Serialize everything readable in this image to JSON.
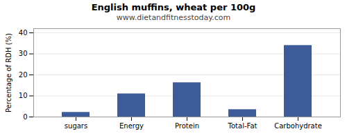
{
  "chart_data": {
    "type": "bar",
    "title": "English muffins, wheat per 100g",
    "subtitle": "www.dietandfitnesstoday.com",
    "categories": [
      "sugars",
      "Energy",
      "Protein",
      "Total-Fat",
      "Carbohydrate"
    ],
    "values": [
      2.2,
      11.0,
      16.3,
      3.5,
      34.0
    ],
    "color": "#3d5a99",
    "ylabel": "Percentage of RDH (%)",
    "ylim": [
      0,
      42
    ],
    "yticks": [
      0,
      10,
      20,
      30,
      40
    ],
    "grid": true
  }
}
